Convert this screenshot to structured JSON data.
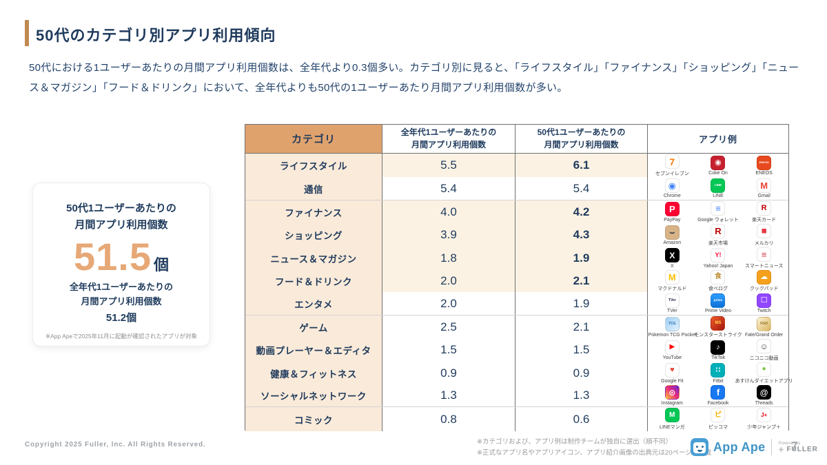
{
  "slide": {
    "title": "50代のカテゴリ別アプリ利用傾向",
    "description": "50代における1ユーザーあたりの月間アプリ利用個数は、全年代より0.3個多い。カテゴリ別に見ると、「ライフスタイル」「ファイナンス」「ショッピング」「ニュース＆マガジン」「フード＆ドリンク」において、全年代よりも50代の1ユーザーあたり月間アプリ利用個数が多い。"
  },
  "highlight_card": {
    "title_line1": "50代1ユーザーあたりの",
    "title_line2": "月間アプリ利用個数",
    "big_value": "51.5",
    "big_unit": "個",
    "sub_line1": "全年代1ユーザーあたりの",
    "sub_line2": "月間アプリ利用個数",
    "sub_value": "51.2個",
    "note": "※App Apeで2025年11月に起動が確認されたアプリが対象"
  },
  "colors": {
    "navy_text": "#1e3a5c",
    "accent_bar": "#c08a52",
    "header_tan": "#e0a26d",
    "category_bg": "#faead9",
    "highlight_row_bg": "#fcf2e3",
    "big_number": "#e6a876",
    "appape_blue": "#4094c4"
  },
  "table": {
    "header": {
      "category": "カテゴリ",
      "all_line1": "全年代1ユーザーあたりの",
      "all_line2": "月間アプリ利用個数",
      "fifties_line1": "50代1ユーザーあたりの",
      "fifties_line2": "月間アプリ利用個数",
      "apps": "アプリ例"
    },
    "rows": [
      {
        "category": "ライフスタイル",
        "all": "5.5",
        "fifties": "6.1",
        "highlight": true,
        "apps": [
          {
            "id": "seven-eleven-icon",
            "label": "セブンイレブン",
            "bg": "#ffffff",
            "fg": "#ff7a00",
            "glyph": "7",
            "fs": 14
          },
          {
            "id": "coke-on-icon",
            "label": "Coke On",
            "bg": "#c7202e",
            "fg": "#ffffff",
            "glyph": "◉",
            "fs": 11
          },
          {
            "id": "eneos-icon",
            "label": "ENEOS",
            "bg": "#e8491e",
            "fg": "#ffffff",
            "glyph": "ENEOS",
            "fs": 4
          }
        ]
      },
      {
        "category": "通信",
        "all": "5.4",
        "fifties": "5.4",
        "highlight": false,
        "apps": [
          {
            "id": "chrome-icon",
            "label": "Chrome",
            "bg": "#ffffff",
            "fg": "#4285f4",
            "glyph": "◉",
            "fs": 13
          },
          {
            "id": "line-icon",
            "label": "LINE",
            "bg": "#06c755",
            "fg": "#ffffff",
            "glyph": "LINE",
            "fs": 4.5
          },
          {
            "id": "gmail-icon",
            "label": "Gmail",
            "bg": "#ffffff",
            "fg": "#ea4335",
            "glyph": "M",
            "fs": 13
          }
        ]
      },
      {
        "category": "ファイナンス",
        "all": "4.0",
        "fifties": "4.2",
        "highlight": true,
        "apps": [
          {
            "id": "paypay-icon",
            "label": "PayPay",
            "bg": "#ff0033",
            "fg": "#ffffff",
            "glyph": "P",
            "fs": 13
          },
          {
            "id": "google-wallet-icon",
            "label": "Google ウォレット",
            "bg": "#ffffff",
            "fg": "#4285f4",
            "glyph": "≡",
            "fs": 13
          },
          {
            "id": "rakuten-card-icon",
            "label": "楽天カード",
            "bg": "#ffffff",
            "fg": "#bf0000",
            "glyph": "R",
            "fs": 11
          }
        ]
      },
      {
        "category": "ショッピング",
        "all": "3.9",
        "fifties": "4.3",
        "highlight": true,
        "apps": [
          {
            "id": "amazon-icon",
            "label": "Amazon",
            "bg": "#d7b387",
            "fg": "#1a2b3c",
            "glyph": "⌣",
            "fs": 12
          },
          {
            "id": "rakuten-ichiba-icon",
            "label": "楽天市場",
            "bg": "#ffffff",
            "fg": "#bf0000",
            "glyph": "R",
            "fs": 13
          },
          {
            "id": "mercari-icon",
            "label": "メルカリ",
            "bg": "#ffffff",
            "fg": "#e63946",
            "glyph": "◼",
            "fs": 10
          }
        ]
      },
      {
        "category": "ニュース＆マガジン",
        "all": "1.8",
        "fifties": "1.9",
        "highlight": true,
        "apps": [
          {
            "id": "x-icon",
            "label": "X",
            "bg": "#000000",
            "fg": "#ffffff",
            "glyph": "X",
            "fs": 12
          },
          {
            "id": "yahoo-japan-icon",
            "label": "Yahoo! Japan",
            "bg": "#ffffff",
            "fg": "#ff0033",
            "glyph": "Y!",
            "fs": 9
          },
          {
            "id": "smartnews-icon",
            "label": "スマートニュース",
            "bg": "#ffffff",
            "fg": "#d64045",
            "glyph": "≡",
            "fs": 13
          }
        ]
      },
      {
        "category": "フード＆ドリンク",
        "all": "2.0",
        "fifties": "2.1",
        "highlight": true,
        "apps": [
          {
            "id": "mcdonalds-icon",
            "label": "マクドナルド",
            "bg": "#ffffff",
            "fg": "#ffc107",
            "glyph": "M",
            "fs": 13
          },
          {
            "id": "tabelog-icon",
            "label": "食べログ",
            "bg": "#ffffff",
            "fg": "#c0953f",
            "glyph": "食",
            "fs": 10
          },
          {
            "id": "cookpad-icon",
            "label": "クックパッド",
            "bg": "#f5a11c",
            "fg": "#ffffff",
            "glyph": "☁",
            "fs": 11
          }
        ]
      },
      {
        "category": "エンタメ",
        "all": "2.0",
        "fifties": "1.9",
        "highlight": false,
        "apps": [
          {
            "id": "tver-icon",
            "label": "TVer",
            "bg": "#ffffff",
            "fg": "#20264d",
            "glyph": "TVer",
            "fs": 5
          },
          {
            "id": "prime-video-icon",
            "label": "Prime Video",
            "bg": "linear-gradient(180deg,#2b9fff,#0f6fd6)",
            "fg": "#ffffff",
            "glyph": "prime",
            "fs": 4.5
          },
          {
            "id": "twitch-icon",
            "label": "Twitch",
            "bg": "#9146ff",
            "fg": "#ffffff",
            "glyph": "☐",
            "fs": 11
          }
        ]
      },
      {
        "category": "ゲーム",
        "all": "2.5",
        "fifties": "2.1",
        "highlight": false,
        "apps": [
          {
            "id": "pokemon-tcg-pocket-icon",
            "label": "Pokemon TCG Pocket",
            "bg": "linear-gradient(135deg,#9fd0f5,#e3f1fc)",
            "fg": "#2a6db5",
            "glyph": "TCG",
            "fs": 5
          },
          {
            "id": "monster-strike-icon",
            "label": "モンスターストライク",
            "bg": "linear-gradient(135deg,#f05a28,#a3170f)",
            "fg": "#ffd34d",
            "glyph": "MS",
            "fs": 6
          },
          {
            "id": "fate-grand-order-icon",
            "label": "Fate/Grand Order",
            "bg": "linear-gradient(135deg,#fdf3d8,#d9b45c)",
            "fg": "#8a6a20",
            "glyph": "FGO",
            "fs": 5
          }
        ]
      },
      {
        "category": "動画プレーヤー＆エディタ",
        "all": "1.5",
        "fifties": "1.5",
        "highlight": false,
        "apps": [
          {
            "id": "youtube-icon",
            "label": "YouTube",
            "bg": "#ffffff",
            "fg": "#ff0000",
            "glyph": "▶",
            "fs": 10
          },
          {
            "id": "tiktok-icon",
            "label": "TikTok",
            "bg": "#010101",
            "fg": "#ffffff",
            "glyph": "♪",
            "fs": 11
          },
          {
            "id": "niconico-icon",
            "label": "ニコニコ動画",
            "bg": "#ffffff",
            "fg": "#4a4a4a",
            "glyph": "☺",
            "fs": 12
          }
        ]
      },
      {
        "category": "健康＆フィットネス",
        "all": "0.9",
        "fifties": "0.9",
        "highlight": false,
        "apps": [
          {
            "id": "google-fit-icon",
            "label": "Google Fit",
            "bg": "#ffffff",
            "fg": "#ea4335",
            "glyph": "♥",
            "fs": 11
          },
          {
            "id": "fitbit-icon",
            "label": "Fitbit",
            "bg": "#00b0b9",
            "fg": "#ffffff",
            "glyph": "∷",
            "fs": 10
          },
          {
            "id": "asken-diet-icon",
            "label": "あすけんダイエットアプリ",
            "bg": "#ffffff",
            "fg": "#7ac143",
            "glyph": "●",
            "fs": 10
          }
        ]
      },
      {
        "category": "ソーシャルネットワーク",
        "all": "1.3",
        "fifties": "1.3",
        "highlight": false,
        "apps": [
          {
            "id": "instagram-icon",
            "label": "Instagram",
            "bg": "linear-gradient(45deg,#f9ce34,#ee2a7b,#6228d7)",
            "fg": "#ffffff",
            "glyph": "⊙",
            "fs": 12
          },
          {
            "id": "facebook-icon",
            "label": "Facebook",
            "bg": "#1877f2",
            "fg": "#ffffff",
            "glyph": "f",
            "fs": 13
          },
          {
            "id": "threads-icon",
            "label": "Threads",
            "bg": "#000000",
            "fg": "#ffffff",
            "glyph": "@",
            "fs": 12
          }
        ]
      },
      {
        "category": "コミック",
        "all": "0.8",
        "fifties": "0.6",
        "highlight": false,
        "apps": [
          {
            "id": "line-manga-icon",
            "label": "LINEマンガ",
            "bg": "#06c755",
            "fg": "#ffffff",
            "glyph": "M",
            "fs": 10
          },
          {
            "id": "piccoma-icon",
            "label": "ピッコマ",
            "bg": "#ffffff",
            "fg": "#f7b500",
            "glyph": "ピ",
            "fs": 10
          },
          {
            "id": "shonen-jump-plus-icon",
            "label": "少年ジャンプ＋",
            "bg": "#ffffff",
            "fg": "#e60012",
            "glyph": "J+",
            "fs": 8
          }
        ]
      }
    ]
  },
  "footer": {
    "copyright": "Copyright 2025 Fuller, Inc. All Rights Reserved.",
    "note1": "※カテゴリおよび、アプリ例は制作チームが独自に選出（順不同）",
    "note2": "※正式なアプリ名やアプリアイコン、アプリ紹介画像の出典元は20ページに記載",
    "logo_text": "App Ape",
    "powered_by": "Powered by",
    "powered_company": "FULLER",
    "page_number": "7"
  }
}
